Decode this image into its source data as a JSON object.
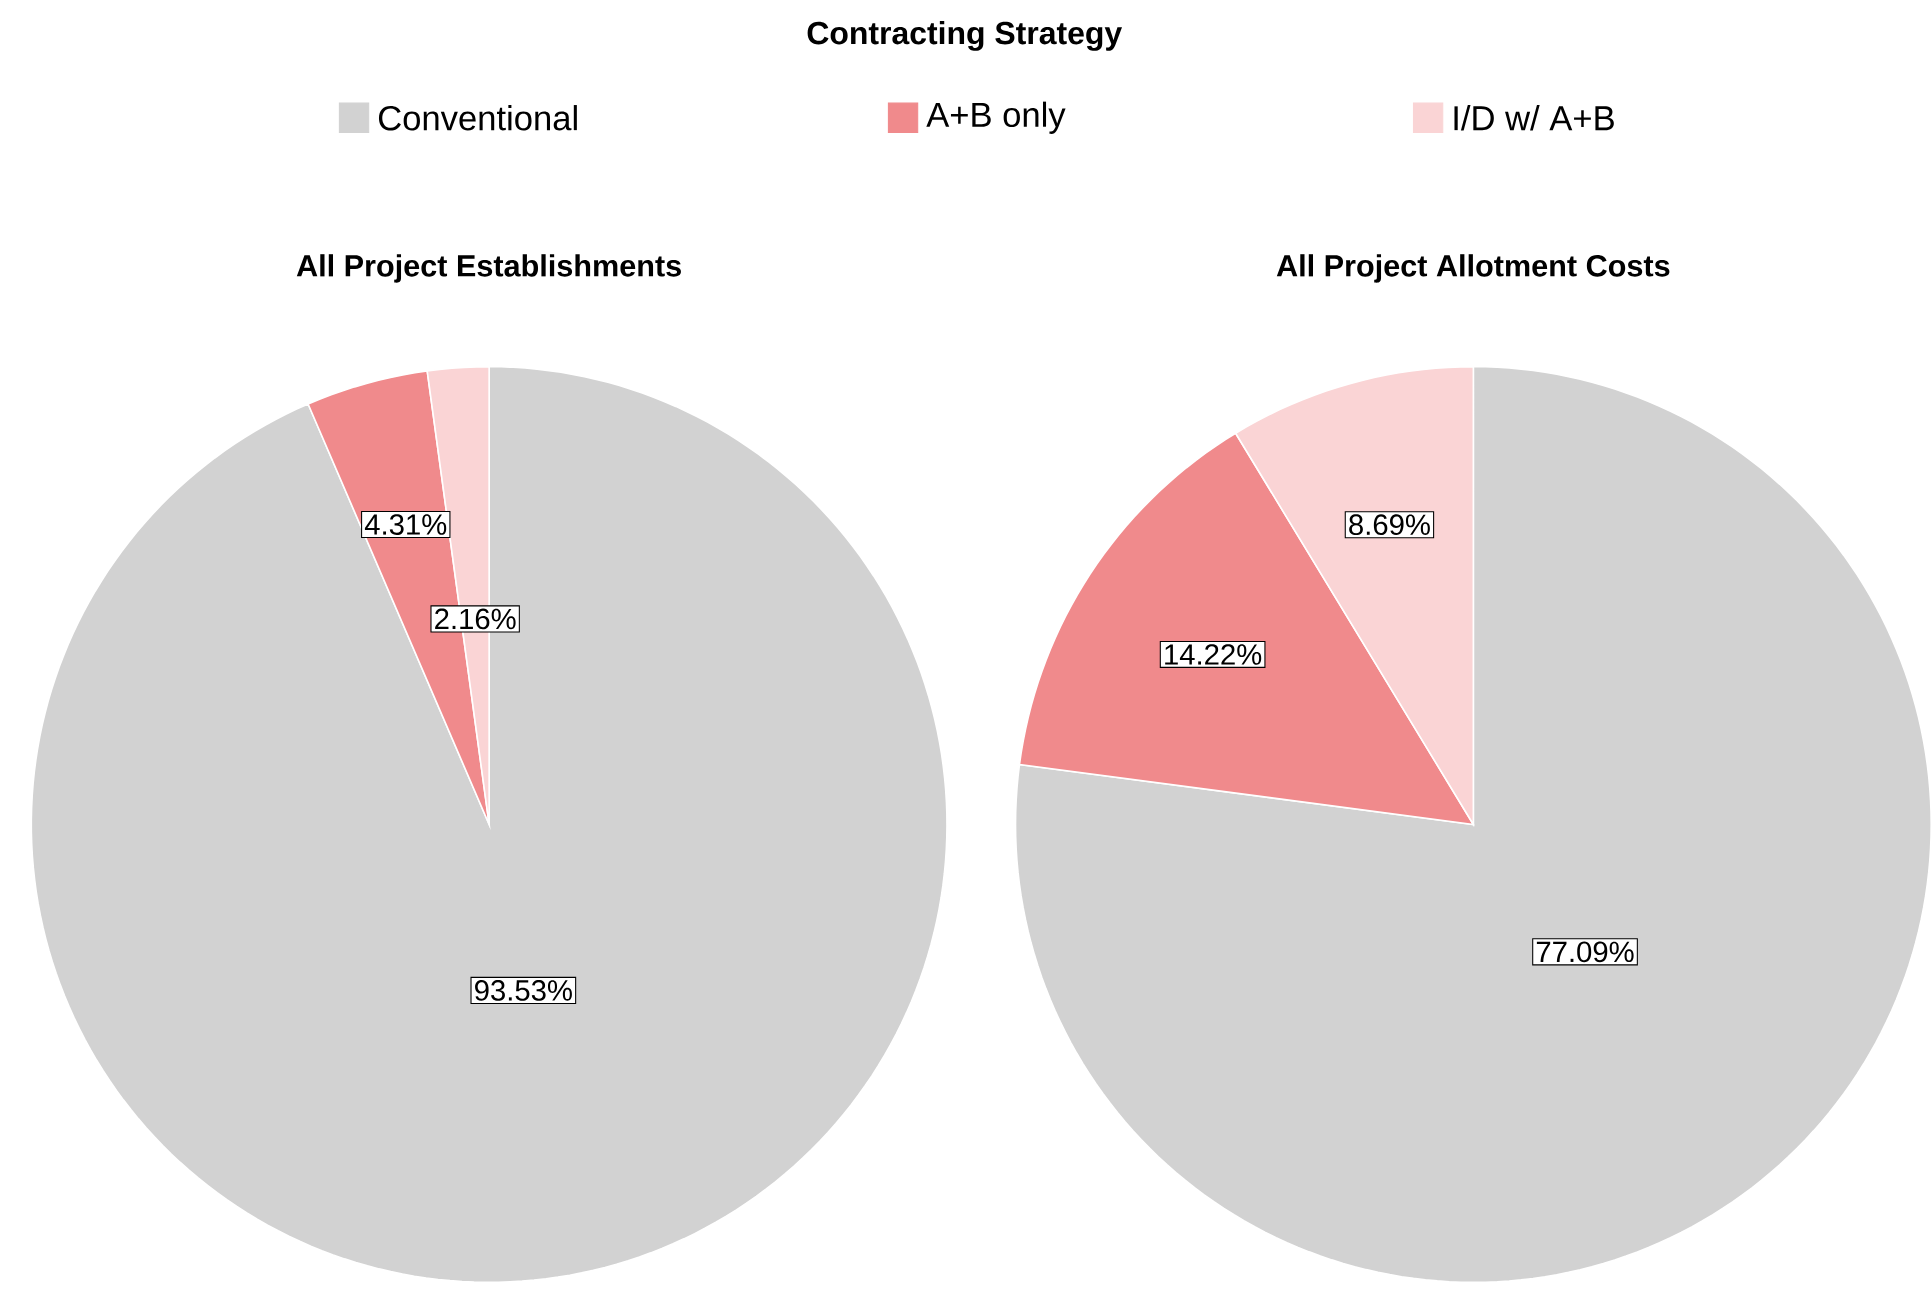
{
  "chart_data": [
    {
      "type": "pie",
      "title": "All Project Establishments",
      "legend_title": "Contracting Strategy",
      "legend": "top",
      "categories": [
        "Conventional",
        "A+B only",
        "I/D w/ A+B"
      ],
      "values": [
        93.53,
        4.31,
        2.16
      ],
      "value_labels": [
        "93.53%",
        "4.31%",
        "2.16%"
      ],
      "colors": [
        "#d2d2d2",
        "#f08a8c",
        "#fad4d5"
      ]
    },
    {
      "type": "pie",
      "title": "All Project Allotment Costs",
      "values": [
        77.09,
        14.22,
        8.69
      ],
      "categories": [
        null,
        null,
        null
      ],
      "value_labels": [
        "77.09%",
        "14.22%",
        "8.69%"
      ],
      "colors": [
        "#d2d2d2",
        "#f08a8c",
        "#fad4d5"
      ]
    }
  ]
}
